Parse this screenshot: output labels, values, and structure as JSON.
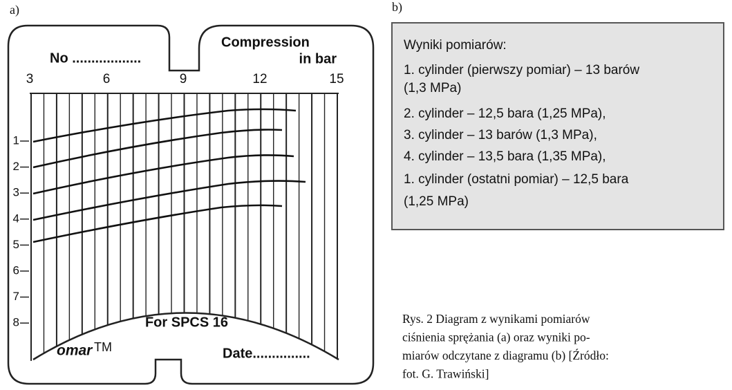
{
  "figure": {
    "label_a": "a)",
    "label_b": "b)",
    "card": {
      "number_field": "No ..................",
      "heading_line1": "Compression",
      "heading_line2": "in bar",
      "scale_labels": [
        "3",
        "6",
        "9",
        "12",
        "15"
      ],
      "row_labels": [
        "1",
        "2",
        "3",
        "4",
        "5",
        "6",
        "7",
        "8"
      ],
      "model": "For SPCS 16",
      "brand": "omar",
      "trademark": "TM",
      "date_field": "Date..............."
    },
    "results": {
      "title": "Wyniki pomiarów:",
      "lines": [
        "1. cylinder (pierwszy pomiar) – 13 barów",
        "(1,3 MPa)",
        "2. cylinder – 12,5 bara (1,25 MPa),",
        "3. cylinder – 13 barów (1,3 MPa),",
        "4. cylinder – 13,5 bara (1,35 MPa),",
        "1. cylinder (ostatni pomiar) – 12,5 bara",
        "(1,25 MPa)"
      ]
    },
    "caption": {
      "lines": [
        "Rys. 2  Diagram z wynikami pomiarów",
        "ciśnienia sprężania (a) oraz wyniki po-",
        "miarów odczytane z diagramu (b) [Źródło:",
        "fot. G. Trawiński]"
      ]
    }
  }
}
